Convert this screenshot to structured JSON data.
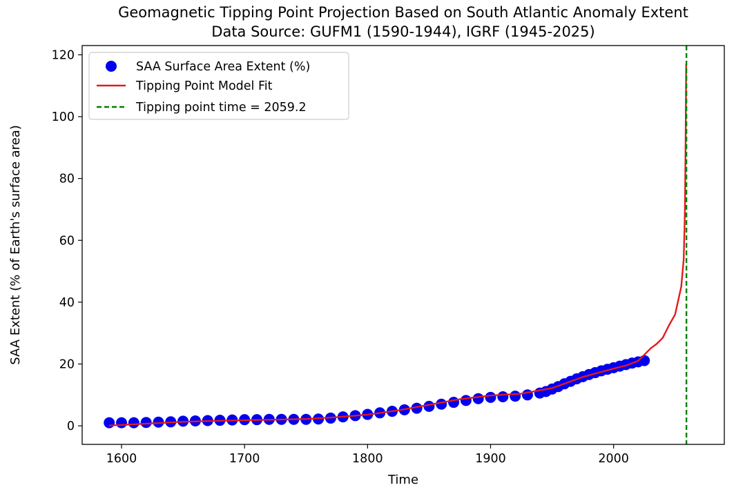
{
  "chart_data": {
    "type": "scatter",
    "title": "Geomagnetic Tipping Point Projection Based on South Atlantic Anomaly Extent",
    "subtitle": "Data Source: GUFM1 (1590-1944), IGRF (1945-2025)",
    "xlabel": "Time",
    "ylabel": "SAA Extent (% of Earth's surface area)",
    "xlim": [
      1568,
      2090
    ],
    "ylim": [
      -6,
      123
    ],
    "x_ticks": [
      1600,
      1700,
      1800,
      1900,
      2000
    ],
    "y_ticks": [
      0,
      20,
      40,
      60,
      80,
      100,
      120
    ],
    "grid": false,
    "legend_position": "top-left",
    "colors": {
      "scatter": "#0000ee",
      "fit": "#e31a1c",
      "tipping": "#008000",
      "axis": "#000000"
    },
    "series": [
      {
        "name": "SAA Surface Area Extent (%)",
        "kind": "scatter",
        "x": [
          1590,
          1600,
          1610,
          1620,
          1630,
          1640,
          1650,
          1660,
          1670,
          1680,
          1690,
          1700,
          1710,
          1720,
          1730,
          1740,
          1750,
          1760,
          1770,
          1780,
          1790,
          1800,
          1810,
          1820,
          1830,
          1840,
          1850,
          1860,
          1870,
          1880,
          1890,
          1900,
          1910,
          1920,
          1930,
          1940,
          1945,
          1950,
          1955,
          1960,
          1965,
          1970,
          1975,
          1980,
          1985,
          1990,
          1995,
          2000,
          2005,
          2010,
          2015,
          2020,
          2025
        ],
        "y": [
          1.0,
          1.0,
          1.0,
          1.1,
          1.2,
          1.3,
          1.5,
          1.6,
          1.7,
          1.8,
          1.9,
          2.0,
          2.0,
          2.1,
          2.1,
          2.1,
          2.1,
          2.2,
          2.5,
          2.9,
          3.3,
          3.7,
          4.2,
          4.7,
          5.2,
          5.7,
          6.3,
          7.0,
          7.6,
          8.2,
          8.8,
          9.2,
          9.4,
          9.6,
          10.0,
          10.6,
          11.1,
          11.9,
          12.7,
          13.6,
          14.4,
          15.2,
          15.9,
          16.6,
          17.2,
          17.8,
          18.3,
          18.8,
          19.3,
          19.8,
          20.3,
          20.7,
          21.1
        ]
      },
      {
        "name": "Tipping Point Model Fit",
        "kind": "line",
        "x": [
          1590,
          1600,
          1625,
          1650,
          1675,
          1700,
          1725,
          1750,
          1775,
          1800,
          1825,
          1850,
          1875,
          1900,
          1925,
          1950,
          1975,
          2000,
          2010,
          2020,
          2025,
          2030,
          2035,
          2040,
          2045,
          2050,
          2055,
          2057,
          2058,
          2058.6,
          2059.0
        ],
        "y": [
          0.1,
          0.3,
          0.8,
          1.3,
          1.6,
          1.8,
          2.0,
          2.2,
          2.8,
          3.6,
          5.0,
          6.8,
          8.6,
          9.8,
          10.4,
          12.2,
          15.8,
          18.5,
          19.5,
          21.0,
          23.0,
          25.0,
          26.5,
          28.5,
          32.5,
          36.0,
          45.0,
          54.0,
          70.0,
          95.0,
          117.0
        ]
      }
    ],
    "tipping_point": {
      "name": "Tipping point time = 2059.2",
      "x": 2059.2
    }
  }
}
